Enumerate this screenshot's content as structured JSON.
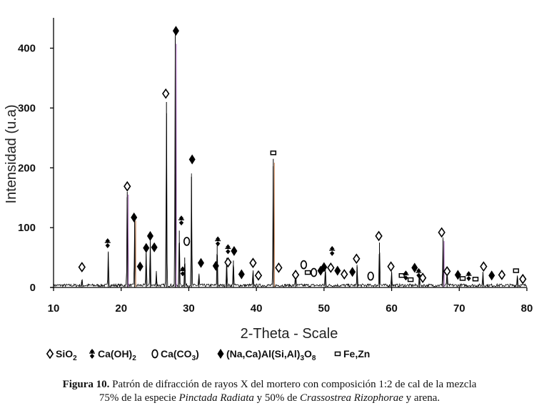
{
  "chart_data": {
    "type": "line",
    "xlabel": "2-Theta - Scale",
    "ylabel": "Intensidad (u.a)",
    "xlim": [
      10,
      80
    ],
    "ylim": [
      0,
      440
    ],
    "xticks": [
      "10",
      "20",
      "30",
      "40",
      "50",
      "60",
      "70",
      "80"
    ],
    "yticks": [
      "0",
      "100",
      "200",
      "300",
      "400"
    ],
    "grid": false,
    "background_noise": 5,
    "peaks": [
      {
        "x": 14.2,
        "y": 10
      },
      {
        "x": 18.1,
        "y": 60
      },
      {
        "x": 20.9,
        "y": 160
      },
      {
        "x": 22.0,
        "y": 115
      },
      {
        "x": 23.7,
        "y": 60
      },
      {
        "x": 24.3,
        "y": 80
      },
      {
        "x": 25.2,
        "y": 25
      },
      {
        "x": 26.7,
        "y": 310
      },
      {
        "x": 28.0,
        "y": 420
      },
      {
        "x": 28.6,
        "y": 95
      },
      {
        "x": 29.4,
        "y": 50
      },
      {
        "x": 30.4,
        "y": 185
      },
      {
        "x": 31.5,
        "y": 20
      },
      {
        "x": 34.2,
        "y": 70
      },
      {
        "x": 35.6,
        "y": 45
      },
      {
        "x": 36.6,
        "y": 45
      },
      {
        "x": 39.5,
        "y": 25
      },
      {
        "x": 42.5,
        "y": 215
      },
      {
        "x": 45.8,
        "y": 25
      },
      {
        "x": 50.2,
        "y": 30
      },
      {
        "x": 54.9,
        "y": 35
      },
      {
        "x": 58.2,
        "y": 75
      },
      {
        "x": 60.0,
        "y": 25
      },
      {
        "x": 64.1,
        "y": 20
      },
      {
        "x": 67.6,
        "y": 80
      },
      {
        "x": 68.2,
        "y": 25
      },
      {
        "x": 73.5,
        "y": 25
      },
      {
        "x": 78.6,
        "y": 20
      }
    ],
    "markers": [
      {
        "x": 14.2,
        "y": 34,
        "s": "sio2"
      },
      {
        "x": 18.0,
        "y": 74,
        "s": "caoh2"
      },
      {
        "x": 20.9,
        "y": 169,
        "s": "sio2"
      },
      {
        "x": 21.9,
        "y": 117,
        "s": "feld"
      },
      {
        "x": 23.7,
        "y": 66,
        "s": "feld"
      },
      {
        "x": 24.3,
        "y": 86,
        "s": "feld"
      },
      {
        "x": 24.9,
        "y": 67,
        "s": "feld"
      },
      {
        "x": 22.8,
        "y": 35,
        "s": "feld"
      },
      {
        "x": 26.6,
        "y": 324,
        "s": "sio2"
      },
      {
        "x": 28.1,
        "y": 429,
        "s": "feld"
      },
      {
        "x": 28.9,
        "y": 112,
        "s": "caoh2"
      },
      {
        "x": 29.7,
        "y": 77,
        "s": "caco3"
      },
      {
        "x": 29.1,
        "y": 27,
        "s": "caoh2"
      },
      {
        "x": 30.5,
        "y": 214,
        "s": "feld"
      },
      {
        "x": 31.8,
        "y": 41,
        "s": "feld"
      },
      {
        "x": 34.3,
        "y": 77,
        "s": "caoh2"
      },
      {
        "x": 34.0,
        "y": 36,
        "s": "feld"
      },
      {
        "x": 35.8,
        "y": 64,
        "s": "caoh2"
      },
      {
        "x": 35.8,
        "y": 42,
        "s": "sio2"
      },
      {
        "x": 36.7,
        "y": 61,
        "s": "feld"
      },
      {
        "x": 37.8,
        "y": 22,
        "s": "feld"
      },
      {
        "x": 39.5,
        "y": 41,
        "s": "sio2"
      },
      {
        "x": 40.3,
        "y": 20,
        "s": "sio2"
      },
      {
        "x": 42.5,
        "y": 225,
        "s": "fezn"
      },
      {
        "x": 43.3,
        "y": 33,
        "s": "sio2"
      },
      {
        "x": 45.8,
        "y": 21,
        "s": "sio2"
      },
      {
        "x": 47.0,
        "y": 38,
        "s": "caco3"
      },
      {
        "x": 47.6,
        "y": 25,
        "s": "fezn"
      },
      {
        "x": 48.5,
        "y": 25,
        "s": "caco3"
      },
      {
        "x": 49.5,
        "y": 28,
        "s": "feld"
      },
      {
        "x": 50.0,
        "y": 34,
        "s": "feld"
      },
      {
        "x": 51.0,
        "y": 33,
        "s": "sio2"
      },
      {
        "x": 51.2,
        "y": 61,
        "s": "caoh2"
      },
      {
        "x": 52.0,
        "y": 28,
        "s": "feld"
      },
      {
        "x": 53.0,
        "y": 22,
        "s": "sio2"
      },
      {
        "x": 54.2,
        "y": 26,
        "s": "feld"
      },
      {
        "x": 54.8,
        "y": 48,
        "s": "sio2"
      },
      {
        "x": 56.9,
        "y": 19,
        "s": "caco3"
      },
      {
        "x": 58.1,
        "y": 86,
        "s": "sio2"
      },
      {
        "x": 59.9,
        "y": 35,
        "s": "sio2"
      },
      {
        "x": 61.5,
        "y": 20,
        "s": "fezn"
      },
      {
        "x": 62.1,
        "y": 20,
        "s": "caoh2"
      },
      {
        "x": 62.8,
        "y": 13,
        "s": "fezn"
      },
      {
        "x": 63.4,
        "y": 33,
        "s": "feld"
      },
      {
        "x": 64.0,
        "y": 24,
        "s": "caoh2"
      },
      {
        "x": 64.6,
        "y": 16,
        "s": "sio2"
      },
      {
        "x": 67.4,
        "y": 92,
        "s": "sio2"
      },
      {
        "x": 68.2,
        "y": 27,
        "s": "sio2"
      },
      {
        "x": 69.8,
        "y": 21,
        "s": "feld"
      },
      {
        "x": 70.5,
        "y": 15,
        "s": "fezn"
      },
      {
        "x": 71.4,
        "y": 19,
        "s": "caoh2"
      },
      {
        "x": 72.4,
        "y": 14,
        "s": "fezn"
      },
      {
        "x": 73.6,
        "y": 35,
        "s": "sio2"
      },
      {
        "x": 74.8,
        "y": 20,
        "s": "feld"
      },
      {
        "x": 76.3,
        "y": 21,
        "s": "sio2"
      },
      {
        "x": 78.4,
        "y": 28,
        "s": "fezn"
      },
      {
        "x": 79.4,
        "y": 14,
        "s": "sio2"
      }
    ],
    "legend": [
      {
        "symbol": "sio2",
        "label": "SiO",
        "sub": "2",
        "tail": ""
      },
      {
        "symbol": "caoh2",
        "label": "Ca(OH)",
        "sub": "2",
        "tail": ""
      },
      {
        "symbol": "caco3",
        "label": "Ca(CO",
        "sub": "3",
        "tail": ")"
      },
      {
        "symbol": "feld",
        "label": "(Na,Ca)Al(Si,Al)",
        "sub": "3",
        "tail": "O",
        "sub2": "8"
      },
      {
        "symbol": "fezn",
        "label": "Fe,Zn",
        "sub": "",
        "tail": ""
      }
    ],
    "legend_position": "bottom",
    "colors": {
      "trace": "#000000",
      "highlight_a": "#a25fb5",
      "highlight_b": "#d58b5a"
    }
  },
  "caption": {
    "label": "Figura 10.",
    "line1": "Patrón de difracción de rayos X del mortero con composición 1:2 de cal de la mezcla",
    "line2_a": "75% de la especie ",
    "species1": "Pinctada Radiata",
    "line2_b": " y 50% de ",
    "species2": "Crassostrea Rizophorae",
    "line2_c": " y arena."
  }
}
